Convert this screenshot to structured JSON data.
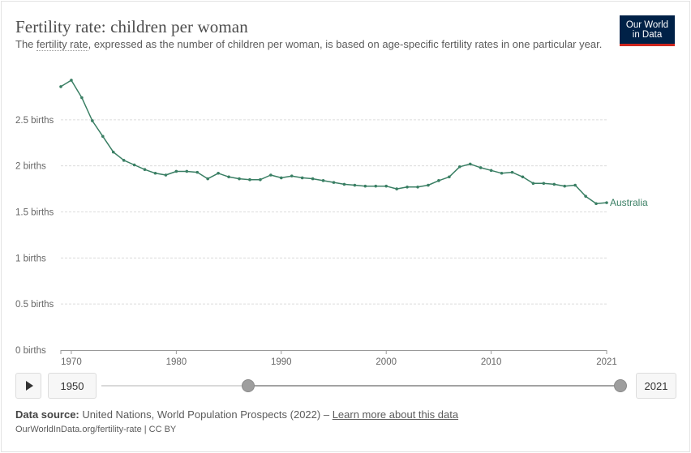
{
  "header": {
    "title": "Fertility rate: children per woman",
    "subtitle_pre": "The ",
    "subtitle_link": "fertility rate",
    "subtitle_post": ", expressed as the number of children per woman, is based on age-specific fertility rates in one particular year.",
    "logo_line1": "Our World",
    "logo_line2": "in Data"
  },
  "colors": {
    "series": "#3a7f64",
    "logo_bg": "#002147",
    "logo_accent": "#ce261e"
  },
  "chart_data": {
    "type": "line",
    "title": "Fertility rate: children per woman",
    "y_ticks": [
      {
        "value": 0,
        "label": "0 births"
      },
      {
        "value": 0.5,
        "label": "0.5 births"
      },
      {
        "value": 1,
        "label": "1 births"
      },
      {
        "value": 1.5,
        "label": "1.5 births"
      },
      {
        "value": 2,
        "label": "2 births"
      },
      {
        "value": 2.5,
        "label": "2.5 births"
      }
    ],
    "x_ticks": [
      {
        "value": 1970,
        "label": "1970"
      },
      {
        "value": 1980,
        "label": "1980"
      },
      {
        "value": 1990,
        "label": "1990"
      },
      {
        "value": 2000,
        "label": "2000"
      },
      {
        "value": 2010,
        "label": "2010"
      },
      {
        "value": 2021,
        "label": "2021"
      }
    ],
    "xlim": [
      1969,
      2021
    ],
    "ylim": [
      0,
      3
    ],
    "grid": true,
    "series": [
      {
        "name": "Australia",
        "x": [
          1969,
          1970,
          1971,
          1972,
          1973,
          1974,
          1975,
          1976,
          1977,
          1978,
          1979,
          1980,
          1981,
          1982,
          1983,
          1984,
          1985,
          1986,
          1987,
          1988,
          1989,
          1990,
          1991,
          1992,
          1993,
          1994,
          1995,
          1996,
          1997,
          1998,
          1999,
          2000,
          2001,
          2002,
          2003,
          2004,
          2005,
          2006,
          2007,
          2008,
          2009,
          2010,
          2011,
          2012,
          2013,
          2014,
          2015,
          2016,
          2017,
          2018,
          2019,
          2020,
          2021
        ],
        "values": [
          2.86,
          2.93,
          2.74,
          2.49,
          2.32,
          2.15,
          2.06,
          2.01,
          1.96,
          1.92,
          1.9,
          1.94,
          1.94,
          1.93,
          1.86,
          1.92,
          1.88,
          1.86,
          1.85,
          1.85,
          1.9,
          1.87,
          1.89,
          1.87,
          1.86,
          1.84,
          1.82,
          1.8,
          1.79,
          1.78,
          1.78,
          1.78,
          1.75,
          1.77,
          1.77,
          1.79,
          1.84,
          1.88,
          1.99,
          2.02,
          1.98,
          1.95,
          1.92,
          1.93,
          1.88,
          1.81,
          1.81,
          1.8,
          1.78,
          1.79,
          1.67,
          1.59,
          1.6
        ]
      }
    ]
  },
  "timeline": {
    "play_label": "play",
    "start_year": "1950",
    "end_year": "2021",
    "start_fraction": 0.283,
    "end_fraction": 1.0
  },
  "footer": {
    "source_label": "Data source:",
    "source_text": " United Nations, World Population Prospects (2022) – ",
    "source_link": "Learn more about this data",
    "url_text": "OurWorldInData.org/fertility-rate | CC BY"
  }
}
